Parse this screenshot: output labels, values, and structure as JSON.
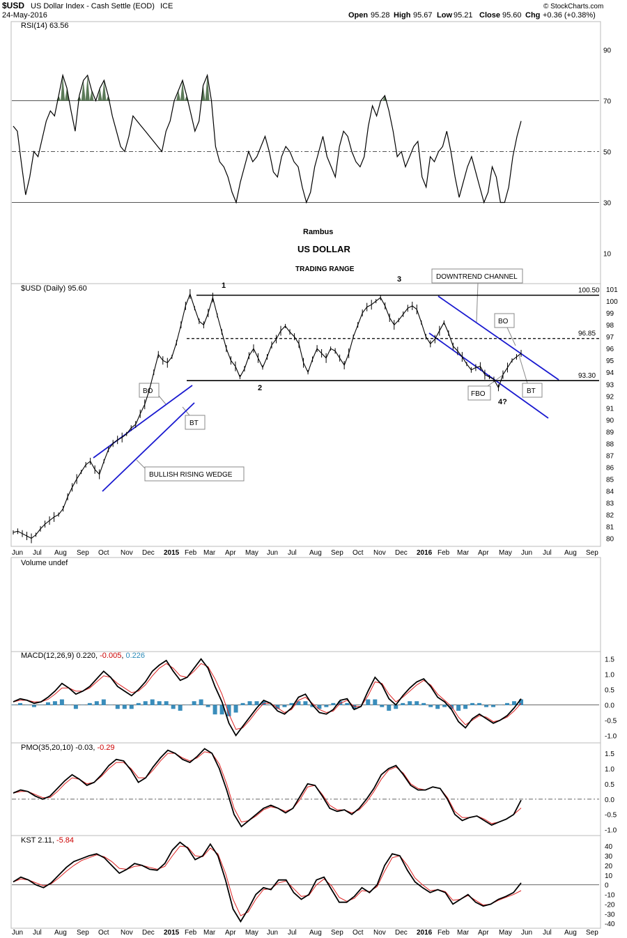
{
  "header": {
    "symbol": "$USD",
    "name": "US Dollar Index - Cash Settle (EOD)",
    "exchange": "ICE",
    "date": "24-May-2016",
    "open_label": "Open",
    "open": "95.28",
    "high_label": "High",
    "high": "95.67",
    "low_label": "Low",
    "low": "95.21",
    "close_label": "Close",
    "close": "95.60",
    "chg_label": "Chg",
    "chg": "+0.36 (+0.38%)",
    "credit": "© StockCharts.com"
  },
  "chart_data": [
    {
      "type": "line",
      "panel": "rsi",
      "legend": "RSI(14) 63.56",
      "yticks": [
        10,
        30,
        50,
        70,
        90
      ],
      "ylim": [
        0,
        100
      ],
      "levels": [
        30,
        50,
        70
      ],
      "series": [
        {
          "name": "RSI(14)",
          "values": [
            60,
            58,
            45,
            33,
            40,
            50,
            48,
            55,
            62,
            66,
            64,
            72,
            80,
            75,
            66,
            58,
            72,
            78,
            80,
            74,
            70,
            75,
            78,
            72,
            64,
            58,
            52,
            50,
            56,
            64,
            62,
            60,
            58,
            56,
            54,
            52,
            50,
            58,
            62,
            70,
            74,
            78,
            72,
            65,
            58,
            62,
            76,
            80,
            70,
            52,
            46,
            44,
            40,
            34,
            30,
            38,
            44,
            50,
            46,
            48,
            52,
            56,
            50,
            42,
            40,
            48,
            52,
            50,
            46,
            44,
            36,
            30,
            34,
            44,
            50,
            56,
            48,
            44,
            40,
            52,
            58,
            56,
            50,
            46,
            44,
            48,
            60,
            68,
            64,
            70,
            72,
            66,
            58,
            48,
            50,
            44,
            48,
            52,
            54,
            40,
            36,
            48,
            46,
            50,
            52,
            58,
            50,
            40,
            32,
            38,
            44,
            48,
            42,
            36,
            30,
            34,
            44,
            40,
            30,
            30,
            36,
            48,
            56,
            62
          ]
        }
      ],
      "annotations": [
        "Rambus",
        "US DOLLAR",
        "TRADING RANGE"
      ]
    },
    {
      "type": "line",
      "panel": "price",
      "legend": "$USD (Daily) 95.60",
      "yticks": [
        80,
        81,
        82,
        83,
        84,
        85,
        86,
        87,
        88,
        89,
        90,
        91,
        92,
        93,
        94,
        95,
        96,
        97,
        98,
        99,
        100,
        101
      ],
      "ylim": [
        79.5,
        101.3
      ],
      "xticks": [
        "Jun",
        "Jul",
        "Aug",
        "Sep",
        "Oct",
        "Nov",
        "Dec",
        "2015",
        "Feb",
        "Mar",
        "Apr",
        "May",
        "Jun",
        "Jul",
        "Aug",
        "Sep",
        "Oct",
        "Nov",
        "Dec",
        "2016",
        "Feb",
        "Mar",
        "Apr",
        "May",
        "Jun",
        "Jul",
        "Aug",
        "Sep"
      ],
      "levels": [
        {
          "value": 100.5,
          "label": "100.50",
          "style": "solid"
        },
        {
          "value": 96.85,
          "label": "96.85",
          "style": "dashed"
        },
        {
          "value": 93.3,
          "label": "93.30",
          "style": "solid"
        }
      ],
      "series": [
        {
          "name": "$USD",
          "values": [
            80.5,
            80.6,
            80.4,
            80.2,
            80.0,
            80.3,
            80.8,
            81.2,
            81.5,
            81.8,
            82.0,
            82.5,
            83.5,
            84.3,
            85.0,
            85.6,
            86.2,
            86.5,
            85.8,
            85.4,
            86.5,
            87.5,
            88.0,
            88.3,
            88.5,
            88.8,
            89.3,
            89.6,
            90.5,
            91.3,
            92.5,
            94.0,
            95.5,
            95.0,
            94.8,
            95.3,
            96.5,
            98.0,
            99.6,
            100.6,
            99.4,
            98.3,
            98.0,
            99.0,
            100.3,
            98.8,
            97.4,
            96.0,
            95.0,
            94.5,
            93.6,
            94.3,
            95.4,
            96.0,
            95.2,
            94.4,
            95.3,
            96.3,
            96.8,
            97.5,
            97.9,
            97.4,
            97.0,
            96.4,
            94.8,
            94.0,
            95.1,
            96.0,
            95.6,
            95.2,
            96.0,
            95.8,
            95.2,
            94.6,
            95.6,
            97.0,
            98.0,
            99.0,
            99.5,
            99.7,
            100.0,
            100.3,
            99.6,
            98.6,
            98.0,
            98.4,
            98.9,
            99.4,
            99.6,
            99.3,
            98.2,
            97.0,
            96.4,
            96.8,
            97.5,
            98.2,
            97.3,
            96.2,
            95.8,
            95.3,
            94.7,
            94.2,
            94.4,
            94.5,
            93.8,
            93.6,
            93.4,
            92.7,
            93.8,
            94.4,
            95.0,
            95.3,
            95.6
          ]
        }
      ],
      "annotations": [
        "1",
        "2",
        "3",
        "4?",
        "DOWNTREND CHANNEL",
        "BO",
        "BT",
        "FBO",
        "BO",
        "BT",
        "BULLISH RISING WEDGE"
      ]
    },
    {
      "type": "bar",
      "panel": "volume",
      "legend": "Volume undef",
      "values": []
    },
    {
      "type": "line",
      "panel": "macd",
      "legend_name": "MACD(12,26,9)",
      "legend_v1": "0.220",
      "legend_v2": "-0.005",
      "legend_v3": "0.226",
      "yticks": [
        "-1.0",
        "-0.5",
        "0.0",
        "0.5",
        "1.0",
        "1.5"
      ],
      "ylim": [
        -1.15,
        1.65
      ],
      "series": [
        {
          "name": "MACD",
          "values": [
            0.1,
            0.2,
            0.15,
            0.05,
            0.1,
            0.25,
            0.45,
            0.7,
            0.55,
            0.35,
            0.45,
            0.6,
            0.85,
            1.1,
            0.9,
            0.6,
            0.45,
            0.3,
            0.5,
            0.75,
            1.1,
            1.3,
            1.45,
            1.1,
            0.8,
            0.9,
            1.2,
            1.5,
            1.2,
            0.6,
            0.1,
            -0.6,
            -1.0,
            -0.7,
            -0.4,
            -0.1,
            0.15,
            0.05,
            -0.2,
            -0.3,
            -0.1,
            0.25,
            0.35,
            0.0,
            -0.25,
            -0.3,
            -0.15,
            0.15,
            0.2,
            -0.15,
            -0.05,
            0.45,
            0.9,
            0.65,
            0.2,
            0.0,
            0.3,
            0.55,
            0.75,
            0.85,
            0.6,
            0.25,
            0.1,
            -0.15,
            -0.55,
            -0.75,
            -0.45,
            -0.3,
            -0.45,
            -0.6,
            -0.5,
            -0.35,
            -0.1,
            0.2
          ]
        },
        {
          "name": "Signal",
          "values": [
            0.1,
            0.15,
            0.15,
            0.1,
            0.1,
            0.18,
            0.35,
            0.55,
            0.55,
            0.45,
            0.45,
            0.55,
            0.75,
            0.95,
            0.9,
            0.7,
            0.55,
            0.4,
            0.45,
            0.65,
            0.95,
            1.2,
            1.35,
            1.2,
            0.95,
            0.9,
            1.1,
            1.35,
            1.25,
            0.85,
            0.35,
            -0.3,
            -0.8,
            -0.75,
            -0.5,
            -0.2,
            0.05,
            0.05,
            -0.1,
            -0.25,
            -0.15,
            0.15,
            0.25,
            0.05,
            -0.15,
            -0.25,
            -0.2,
            0.05,
            0.15,
            -0.05,
            -0.05,
            0.3,
            0.75,
            0.7,
            0.35,
            0.1,
            0.25,
            0.45,
            0.65,
            0.8,
            0.65,
            0.35,
            0.15,
            -0.05,
            -0.4,
            -0.65,
            -0.5,
            -0.35,
            -0.4,
            -0.55,
            -0.5,
            -0.4,
            -0.2,
            0.05
          ]
        }
      ]
    },
    {
      "type": "line",
      "panel": "pmo",
      "legend_name": "PMO(35,20,10)",
      "legend_v1": "-0.03",
      "legend_v2": "-0.29",
      "yticks": [
        "-1.0",
        "-0.5",
        "0.0",
        "0.5",
        "1.0",
        "1.5"
      ],
      "ylim": [
        -1.1,
        1.75
      ],
      "series": [
        {
          "name": "PMO",
          "values": [
            0.2,
            0.3,
            0.25,
            0.1,
            0.0,
            0.1,
            0.35,
            0.6,
            0.8,
            0.65,
            0.45,
            0.55,
            0.8,
            1.1,
            1.3,
            1.25,
            0.95,
            0.55,
            0.7,
            1.05,
            1.35,
            1.6,
            1.5,
            1.3,
            1.2,
            1.4,
            1.65,
            1.5,
            1.0,
            0.3,
            -0.5,
            -0.9,
            -0.7,
            -0.5,
            -0.3,
            -0.2,
            -0.3,
            -0.45,
            -0.3,
            0.1,
            0.5,
            0.45,
            0.1,
            -0.3,
            -0.4,
            -0.35,
            -0.5,
            -0.3,
            0.0,
            0.35,
            0.8,
            1.0,
            1.1,
            0.8,
            0.45,
            0.3,
            0.3,
            0.4,
            0.35,
            0.0,
            -0.5,
            -0.7,
            -0.6,
            -0.55,
            -0.7,
            -0.85,
            -0.75,
            -0.65,
            -0.5,
            -0.03
          ]
        },
        {
          "name": "Signal",
          "values": [
            0.2,
            0.25,
            0.25,
            0.15,
            0.05,
            0.05,
            0.25,
            0.5,
            0.7,
            0.65,
            0.5,
            0.55,
            0.75,
            1.0,
            1.2,
            1.2,
            1.0,
            0.7,
            0.7,
            0.95,
            1.25,
            1.5,
            1.5,
            1.35,
            1.25,
            1.35,
            1.55,
            1.5,
            1.15,
            0.5,
            -0.3,
            -0.75,
            -0.7,
            -0.55,
            -0.35,
            -0.25,
            -0.3,
            -0.4,
            -0.3,
            0.0,
            0.4,
            0.45,
            0.15,
            -0.2,
            -0.35,
            -0.35,
            -0.45,
            -0.35,
            -0.1,
            0.25,
            0.65,
            0.95,
            1.05,
            0.85,
            0.5,
            0.35,
            0.3,
            0.4,
            0.35,
            0.05,
            -0.4,
            -0.6,
            -0.6,
            -0.55,
            -0.65,
            -0.8,
            -0.75,
            -0.65,
            -0.5,
            -0.29
          ]
        }
      ]
    },
    {
      "type": "line",
      "panel": "kst",
      "legend_name": "KST 2.11,",
      "legend_v1": "-5.84",
      "yticks": [
        "-40",
        "-30",
        "-20",
        "-10",
        "0",
        "10",
        "20",
        "30",
        "40"
      ],
      "ylim": [
        -42,
        48
      ],
      "series": [
        {
          "name": "KST",
          "values": [
            3,
            8,
            5,
            0,
            -3,
            2,
            10,
            18,
            24,
            27,
            30,
            32,
            28,
            20,
            12,
            16,
            22,
            20,
            16,
            15,
            22,
            36,
            44,
            38,
            26,
            30,
            42,
            30,
            5,
            -25,
            -38,
            -25,
            -10,
            -3,
            -5,
            5,
            5,
            -8,
            -15,
            -10,
            5,
            8,
            -5,
            -18,
            -18,
            -12,
            -3,
            -8,
            0,
            20,
            32,
            30,
            15,
            3,
            -3,
            -8,
            -5,
            -8,
            -20,
            -15,
            -10,
            -18,
            -22,
            -20,
            -15,
            -12,
            -8,
            2
          ]
        },
        {
          "name": "Signal",
          "values": [
            3,
            6,
            5,
            2,
            -1,
            1,
            7,
            14,
            20,
            25,
            28,
            31,
            29,
            24,
            17,
            16,
            19,
            20,
            18,
            16,
            19,
            30,
            40,
            39,
            30,
            29,
            38,
            32,
            12,
            -15,
            -32,
            -28,
            -15,
            -5,
            -4,
            2,
            4,
            -4,
            -12,
            -11,
            0,
            6,
            -1,
            -13,
            -17,
            -14,
            -6,
            -7,
            -2,
            14,
            28,
            30,
            20,
            7,
            0,
            -6,
            -5,
            -7,
            -16,
            -15,
            -11,
            -16,
            -21,
            -20,
            -16,
            -13,
            -10,
            -6
          ]
        }
      ]
    }
  ]
}
